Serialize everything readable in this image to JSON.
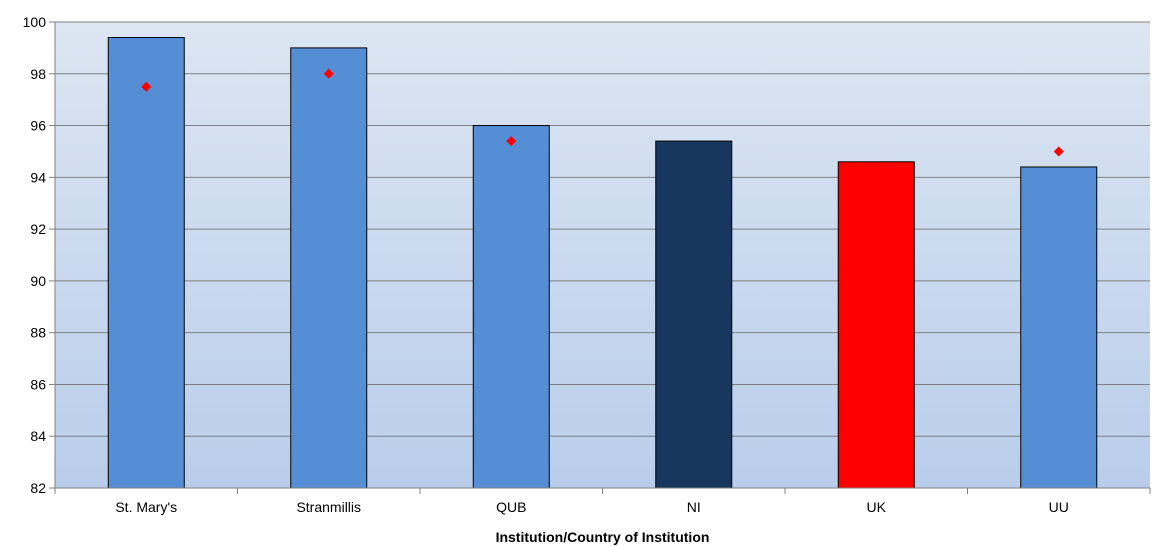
{
  "chart_data": {
    "type": "bar",
    "xlabel": "Institution/Country of Institution",
    "ylabel": "",
    "ylim": [
      82,
      100
    ],
    "yticks": [
      82,
      84,
      86,
      88,
      90,
      92,
      94,
      96,
      98,
      100
    ],
    "grid": true,
    "categories": [
      "St. Mary's",
      "Stranmillis",
      "QUB",
      "NI",
      "UK",
      "UU"
    ],
    "values": [
      99.4,
      99.0,
      96.0,
      95.4,
      94.6,
      94.4
    ],
    "markers": [
      97.5,
      98.0,
      95.4,
      null,
      null,
      95.0
    ],
    "bar_colors": [
      "#558ed5",
      "#558ed5",
      "#558ed5",
      "#17375e",
      "#ff0000",
      "#558ed5"
    ],
    "marker_color": "#ff0000",
    "plot_background": [
      "#dce6f2",
      "#b9cdeb"
    ]
  }
}
